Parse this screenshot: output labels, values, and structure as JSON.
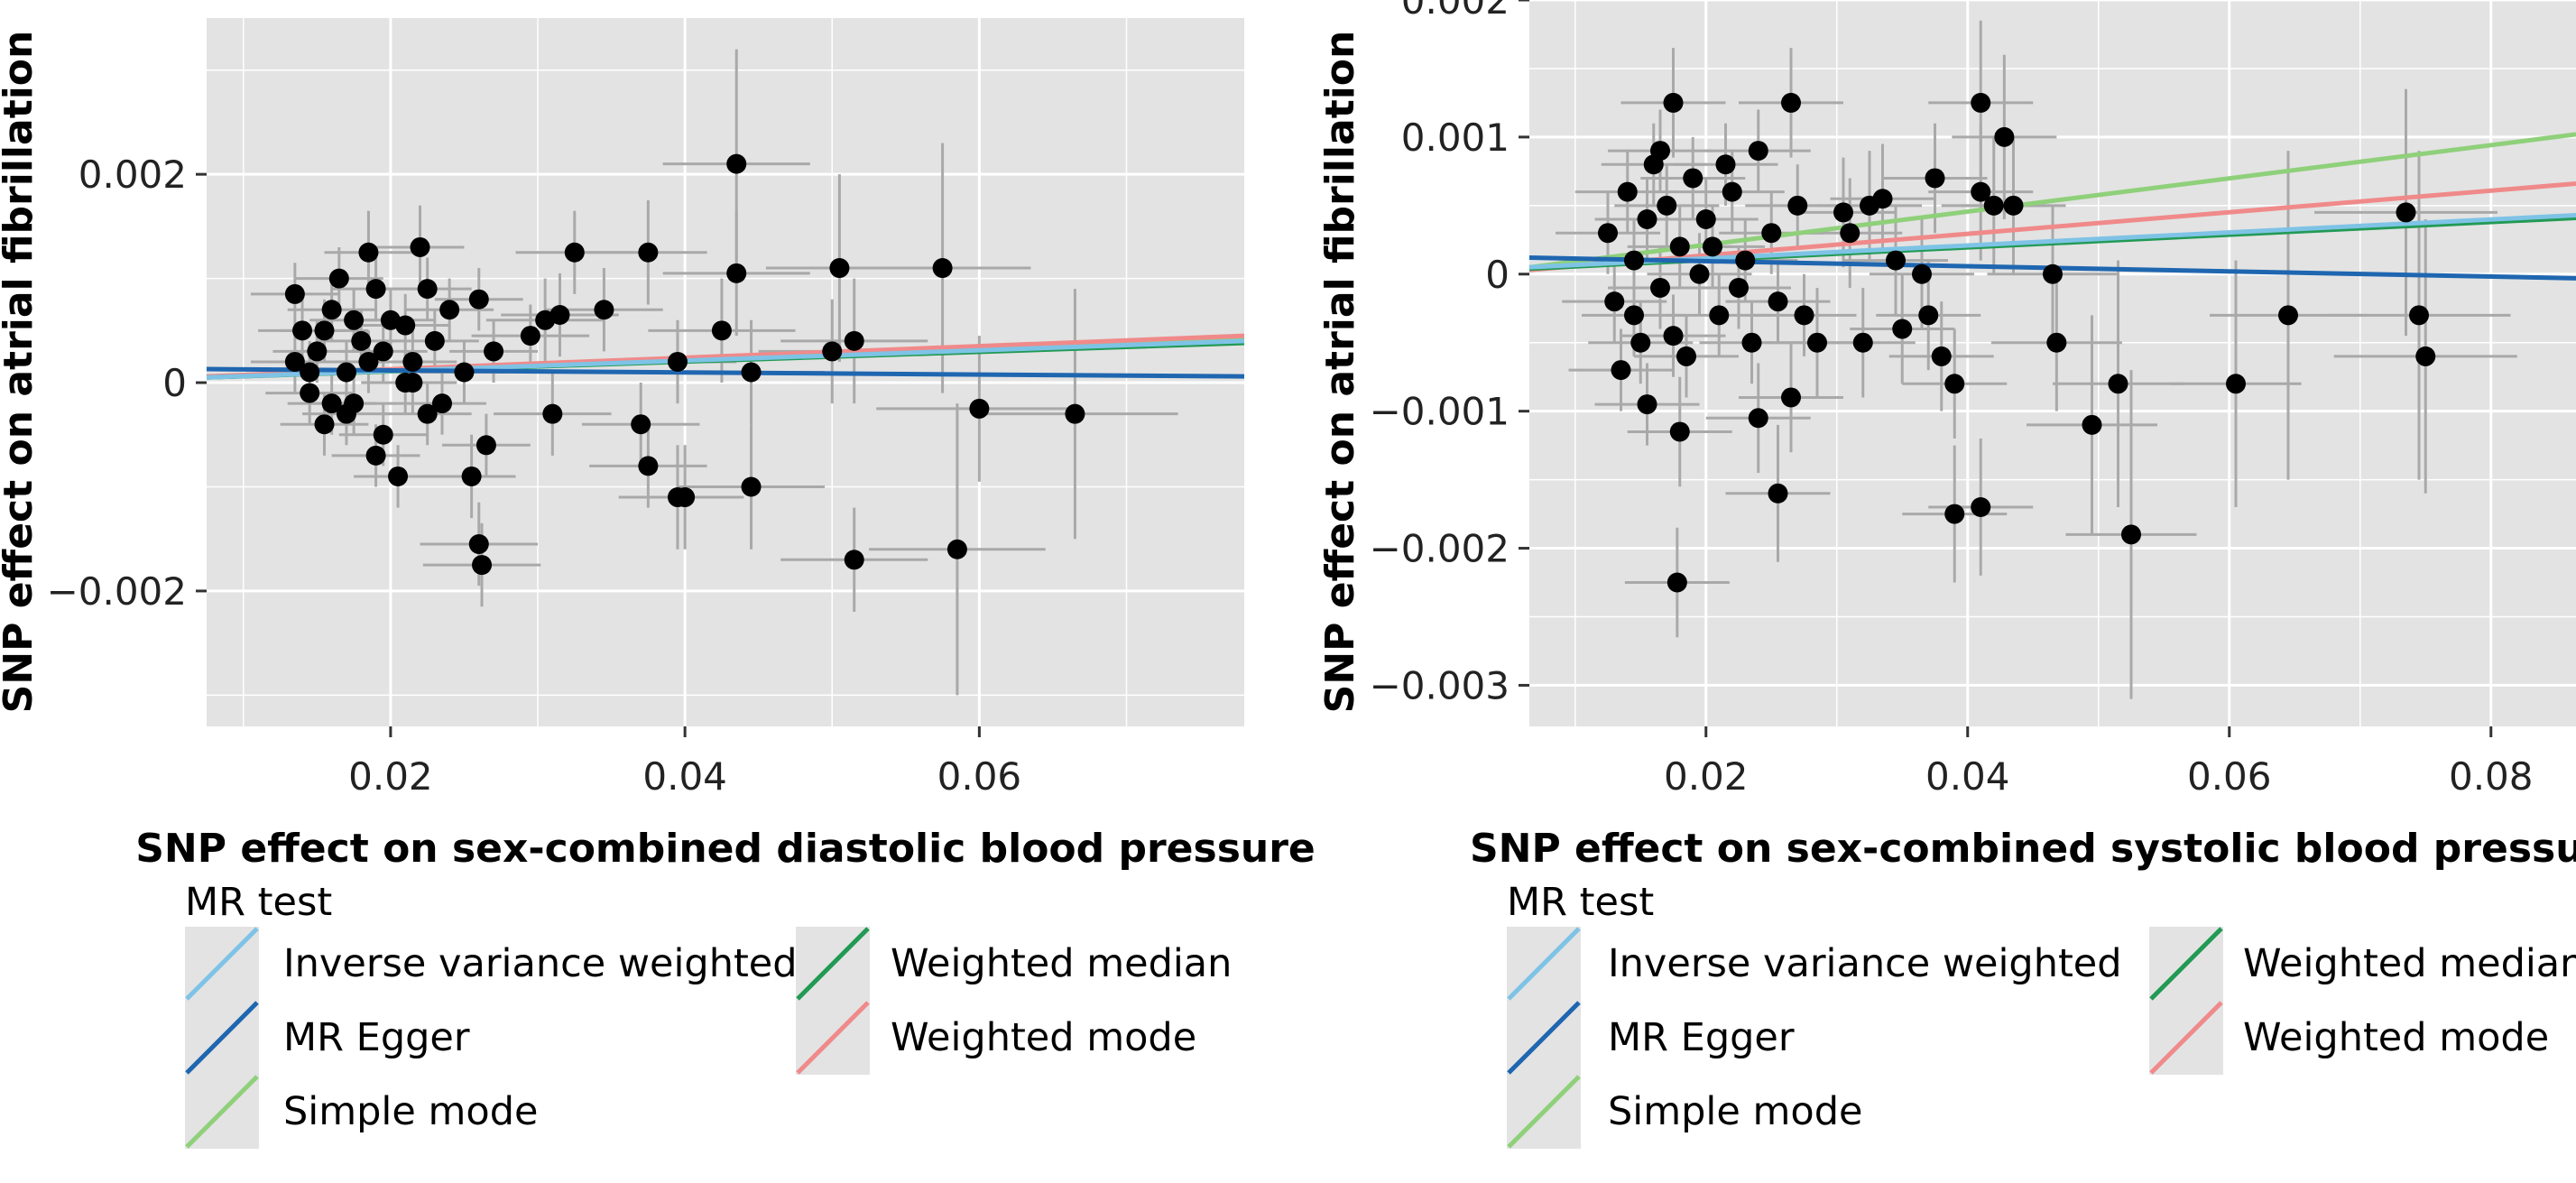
{
  "chart_data": [
    {
      "type": "scatter",
      "xlabel": "SNP effect on sex-combined diastolic blood pressure",
      "ylabel": "SNP effect on atrial fibrillation",
      "xticks": [
        0.02,
        0.04,
        0.06
      ],
      "xtick_labels": [
        "0.02",
        "0.04",
        "0.06"
      ],
      "yticks": [
        0.002,
        0,
        -0.002
      ],
      "ytick_labels": [
        "0.002",
        "0",
        "−0.002"
      ],
      "xlim": [
        0.0075,
        0.078
      ],
      "ylim": [
        -0.0033,
        0.0035
      ],
      "grid": true,
      "legend_title": "MR test",
      "legend_entries": [
        "Inverse variance weighted",
        "Weighted median",
        "MR Egger",
        "Weighted mode",
        "Simple mode"
      ],
      "fits": [
        {
          "name": "Simple mode",
          "x": [
            0.0075,
            0.078
          ],
          "y": [
            5e-05,
            0.00042
          ],
          "color": "#8fd07a"
        },
        {
          "name": "Weighted mode",
          "x": [
            0.0075,
            0.078
          ],
          "y": [
            6e-05,
            0.00045
          ],
          "color": "#f08a8a"
        },
        {
          "name": "Weighted median",
          "x": [
            0.0075,
            0.078
          ],
          "y": [
            5e-05,
            0.00038
          ],
          "color": "#229a55"
        },
        {
          "name": "Inverse variance weighted",
          "x": [
            0.0075,
            0.078
          ],
          "y": [
            5e-05,
            0.0004
          ],
          "color": "#7ec3e6"
        },
        {
          "name": "MR Egger",
          "x": [
            0.0075,
            0.078
          ],
          "y": [
            0.00013,
            6e-05
          ],
          "color": "#1f66b0"
        }
      ],
      "points": [
        [
          0.0135,
          0.00085,
          0.003,
          0.0003
        ],
        [
          0.014,
          0.0005,
          0.003,
          0.0003
        ],
        [
          0.015,
          0.0003,
          0.003,
          0.0003
        ],
        [
          0.0145,
          -0.0001,
          0.003,
          0.0003
        ],
        [
          0.016,
          0.0007,
          0.003,
          0.0003
        ],
        [
          0.0155,
          -0.0004,
          0.003,
          0.0003
        ],
        [
          0.017,
          0.0001,
          0.003,
          0.0003
        ],
        [
          0.0165,
          0.001,
          0.003,
          0.0003
        ],
        [
          0.018,
          0.0004,
          0.003,
          0.0003
        ],
        [
          0.0175,
          -0.0002,
          0.003,
          0.0003
        ],
        [
          0.019,
          0.0009,
          0.003,
          0.0003
        ],
        [
          0.0185,
          0.0002,
          0.003,
          0.0003
        ],
        [
          0.02,
          0.0006,
          0.003,
          0.0003
        ],
        [
          0.0195,
          -0.0005,
          0.003,
          0.0003
        ],
        [
          0.021,
          0.0,
          0.003,
          0.0003
        ],
        [
          0.022,
          0.0013,
          0.003,
          0.0004
        ],
        [
          0.023,
          0.0004,
          0.003,
          0.0003
        ],
        [
          0.0225,
          -0.0003,
          0.003,
          0.0003
        ],
        [
          0.024,
          0.0007,
          0.003,
          0.0003
        ],
        [
          0.025,
          0.0001,
          0.003,
          0.0003
        ],
        [
          0.0255,
          -0.0009,
          0.003,
          0.0004
        ],
        [
          0.026,
          0.0008,
          0.003,
          0.0003
        ],
        [
          0.027,
          0.0003,
          0.003,
          0.0003
        ],
        [
          0.0265,
          -0.0006,
          0.003,
          0.0003
        ],
        [
          0.0145,
          0.0001,
          0.003,
          0.0003
        ],
        [
          0.0155,
          0.0005,
          0.003,
          0.0003
        ],
        [
          0.016,
          -0.0002,
          0.003,
          0.0003
        ],
        [
          0.0185,
          0.00125,
          0.003,
          0.0004
        ],
        [
          0.0205,
          -0.0009,
          0.003,
          0.0003
        ],
        [
          0.021,
          0.00055,
          0.003,
          0.0003
        ],
        [
          0.0215,
          0.0,
          0.003,
          0.0003
        ],
        [
          0.0195,
          0.0003,
          0.003,
          0.0003
        ],
        [
          0.017,
          -0.0003,
          0.003,
          0.0003
        ],
        [
          0.0135,
          0.0002,
          0.003,
          0.0003
        ],
        [
          0.0225,
          0.0009,
          0.003,
          0.0003
        ],
        [
          0.0235,
          -0.0002,
          0.003,
          0.0003
        ],
        [
          0.019,
          -0.0007,
          0.003,
          0.0003
        ],
        [
          0.0175,
          0.0006,
          0.003,
          0.0003
        ],
        [
          0.0215,
          0.0002,
          0.003,
          0.0003
        ],
        [
          0.0295,
          0.00045,
          0.004,
          0.0003
        ],
        [
          0.0305,
          0.0006,
          0.004,
          0.0004
        ],
        [
          0.0325,
          0.00125,
          0.004,
          0.0004
        ],
        [
          0.0315,
          0.00065,
          0.004,
          0.0004
        ],
        [
          0.0345,
          0.0007,
          0.004,
          0.0004
        ],
        [
          0.0375,
          0.00125,
          0.004,
          0.0005
        ],
        [
          0.031,
          -0.0003,
          0.004,
          0.0004
        ],
        [
          0.026,
          -0.00155,
          0.004,
          0.0004
        ],
        [
          0.0262,
          -0.00175,
          0.004,
          0.0004
        ],
        [
          0.0375,
          -0.0008,
          0.004,
          0.0004
        ],
        [
          0.037,
          -0.0004,
          0.004,
          0.0004
        ],
        [
          0.0395,
          0.0002,
          0.004,
          0.0004
        ],
        [
          0.0395,
          -0.0011,
          0.004,
          0.0005
        ],
        [
          0.04,
          -0.0011,
          0.004,
          0.0005
        ],
        [
          0.0435,
          0.0021,
          0.005,
          0.0011
        ],
        [
          0.0435,
          0.00105,
          0.005,
          0.0006
        ],
        [
          0.0425,
          0.0005,
          0.005,
          0.0005
        ],
        [
          0.0445,
          0.0001,
          0.005,
          0.0005
        ],
        [
          0.0445,
          -0.001,
          0.005,
          0.0006
        ],
        [
          0.0505,
          0.0011,
          0.005,
          0.0009
        ],
        [
          0.0515,
          0.0004,
          0.005,
          0.0006
        ],
        [
          0.05,
          0.0003,
          0.005,
          0.0005
        ],
        [
          0.0515,
          -0.0017,
          0.005,
          0.0005
        ],
        [
          0.0575,
          0.0011,
          0.006,
          0.0012
        ],
        [
          0.0585,
          -0.0016,
          0.006,
          0.0014
        ],
        [
          0.06,
          -0.00025,
          0.007,
          0.0007
        ],
        [
          0.0665,
          -0.0003,
          0.007,
          0.0012
        ]
      ]
    },
    {
      "type": "scatter",
      "xlabel": "SNP effect on sex-combined systolic blood pressure",
      "ylabel": "SNP effect on atrial fibrillation",
      "xticks": [
        0.02,
        0.04,
        0.06,
        0.08
      ],
      "xtick_labels": [
        "0.02",
        "0.04",
        "0.06",
        "0.08"
      ],
      "yticks": [
        0.002,
        0.001,
        0,
        -0.001,
        -0.002,
        -0.003
      ],
      "ytick_labels": [
        "0.002",
        "0.001",
        "0",
        "−0.001",
        "−0.002",
        "−0.003"
      ],
      "xlim": [
        0.0065,
        0.0865
      ],
      "ylim": [
        -0.0033,
        0.002
      ],
      "grid": true,
      "legend_title": "MR test",
      "legend_entries": [
        "Inverse variance weighted",
        "Weighted median",
        "MR Egger",
        "Weighted mode",
        "Simple mode"
      ],
      "fits": [
        {
          "name": "Simple mode",
          "x": [
            0.0065,
            0.0865
          ],
          "y": [
            5e-05,
            0.00102
          ],
          "color": "#8fd07a"
        },
        {
          "name": "Weighted mode",
          "x": [
            0.0065,
            0.0865
          ],
          "y": [
            3e-05,
            0.00066
          ],
          "color": "#f08a8a"
        },
        {
          "name": "Weighted median",
          "x": [
            0.0065,
            0.0865
          ],
          "y": [
            4e-05,
            0.00041
          ],
          "color": "#229a55"
        },
        {
          "name": "Inverse variance weighted",
          "x": [
            0.0065,
            0.0865
          ],
          "y": [
            5e-05,
            0.00043
          ],
          "color": "#7ec3e6"
        },
        {
          "name": "MR Egger",
          "x": [
            0.0065,
            0.0865
          ],
          "y": [
            0.00012,
            -3e-05
          ],
          "color": "#1f66b0"
        }
      ],
      "points": [
        [
          0.0125,
          0.0003,
          0.004,
          0.0003
        ],
        [
          0.013,
          -0.0002,
          0.004,
          0.0003
        ],
        [
          0.014,
          0.0006,
          0.004,
          0.0003
        ],
        [
          0.0145,
          0.0001,
          0.004,
          0.0003
        ],
        [
          0.015,
          -0.0005,
          0.004,
          0.0003
        ],
        [
          0.0155,
          0.0004,
          0.004,
          0.0003
        ],
        [
          0.016,
          0.0008,
          0.004,
          0.0003
        ],
        [
          0.0165,
          -0.0001,
          0.004,
          0.0003
        ],
        [
          0.017,
          0.0005,
          0.004,
          0.0003
        ],
        [
          0.0175,
          0.00125,
          0.004,
          0.0004
        ],
        [
          0.018,
          0.0002,
          0.004,
          0.0003
        ],
        [
          0.0185,
          -0.0006,
          0.004,
          0.0003
        ],
        [
          0.019,
          0.0007,
          0.004,
          0.0003
        ],
        [
          0.0195,
          0.0,
          0.004,
          0.0003
        ],
        [
          0.02,
          0.0004,
          0.004,
          0.0003
        ],
        [
          0.021,
          -0.0003,
          0.004,
          0.0003
        ],
        [
          0.022,
          0.0006,
          0.004,
          0.0003
        ],
        [
          0.023,
          0.0001,
          0.004,
          0.0003
        ],
        [
          0.0235,
          -0.0005,
          0.004,
          0.0003
        ],
        [
          0.024,
          0.0009,
          0.004,
          0.0003
        ],
        [
          0.025,
          0.0003,
          0.004,
          0.0003
        ],
        [
          0.0255,
          -0.0002,
          0.004,
          0.0003
        ],
        [
          0.0265,
          0.00125,
          0.004,
          0.0004
        ],
        [
          0.027,
          0.0005,
          0.004,
          0.0003
        ],
        [
          0.0275,
          -0.0003,
          0.004,
          0.0003
        ],
        [
          0.0175,
          -0.00045,
          0.004,
          0.0003
        ],
        [
          0.0165,
          0.0009,
          0.004,
          0.0003
        ],
        [
          0.0145,
          -0.0003,
          0.004,
          0.0003
        ],
        [
          0.0205,
          0.0002,
          0.004,
          0.0003
        ],
        [
          0.0215,
          0.0008,
          0.004,
          0.0003
        ],
        [
          0.0135,
          -0.0007,
          0.004,
          0.0003
        ],
        [
          0.0155,
          -0.00095,
          0.004,
          0.0003
        ],
        [
          0.0225,
          -0.0001,
          0.004,
          0.0003
        ],
        [
          0.018,
          -0.00115,
          0.004,
          0.0004
        ],
        [
          0.0178,
          -0.00225,
          0.004,
          0.0004
        ],
        [
          0.024,
          -0.00105,
          0.004,
          0.0004
        ],
        [
          0.0255,
          -0.0016,
          0.004,
          0.0005
        ],
        [
          0.0265,
          -0.0009,
          0.004,
          0.0004
        ],
        [
          0.0285,
          -0.0005,
          0.004,
          0.0004
        ],
        [
          0.0305,
          0.00045,
          0.004,
          0.0004
        ],
        [
          0.031,
          0.0003,
          0.004,
          0.0004
        ],
        [
          0.0325,
          0.0005,
          0.004,
          0.0004
        ],
        [
          0.0335,
          0.00055,
          0.004,
          0.0004
        ],
        [
          0.0345,
          0.0001,
          0.004,
          0.0004
        ],
        [
          0.035,
          -0.0004,
          0.004,
          0.0004
        ],
        [
          0.032,
          -0.0005,
          0.004,
          0.0004
        ],
        [
          0.0365,
          0.0,
          0.004,
          0.0004
        ],
        [
          0.037,
          -0.0003,
          0.004,
          0.0004
        ],
        [
          0.0375,
          0.0007,
          0.004,
          0.0004
        ],
        [
          0.038,
          -0.0006,
          0.004,
          0.0004
        ],
        [
          0.039,
          -0.0008,
          0.004,
          0.0004
        ],
        [
          0.039,
          -0.00175,
          0.004,
          0.0005
        ],
        [
          0.041,
          -0.0017,
          0.004,
          0.0005
        ],
        [
          0.041,
          0.00125,
          0.004,
          0.0006
        ],
        [
          0.041,
          0.0006,
          0.004,
          0.0005
        ],
        [
          0.042,
          0.0005,
          0.004,
          0.0005
        ],
        [
          0.0428,
          0.001,
          0.004,
          0.0006
        ],
        [
          0.0435,
          0.0005,
          0.004,
          0.0005
        ],
        [
          0.0465,
          0.0,
          0.005,
          0.0005
        ],
        [
          0.0468,
          -0.0005,
          0.005,
          0.0005
        ],
        [
          0.0495,
          -0.0011,
          0.005,
          0.0008
        ],
        [
          0.0515,
          -0.0008,
          0.005,
          0.0009
        ],
        [
          0.0525,
          -0.0019,
          0.005,
          0.0012
        ],
        [
          0.0605,
          -0.0008,
          0.005,
          0.0009
        ],
        [
          0.0645,
          -0.0003,
          0.006,
          0.0012
        ],
        [
          0.0735,
          0.00045,
          0.007,
          0.0009
        ],
        [
          0.0745,
          -0.0003,
          0.007,
          0.0012
        ],
        [
          0.075,
          -0.0006,
          0.007,
          0.001
        ]
      ]
    }
  ]
}
